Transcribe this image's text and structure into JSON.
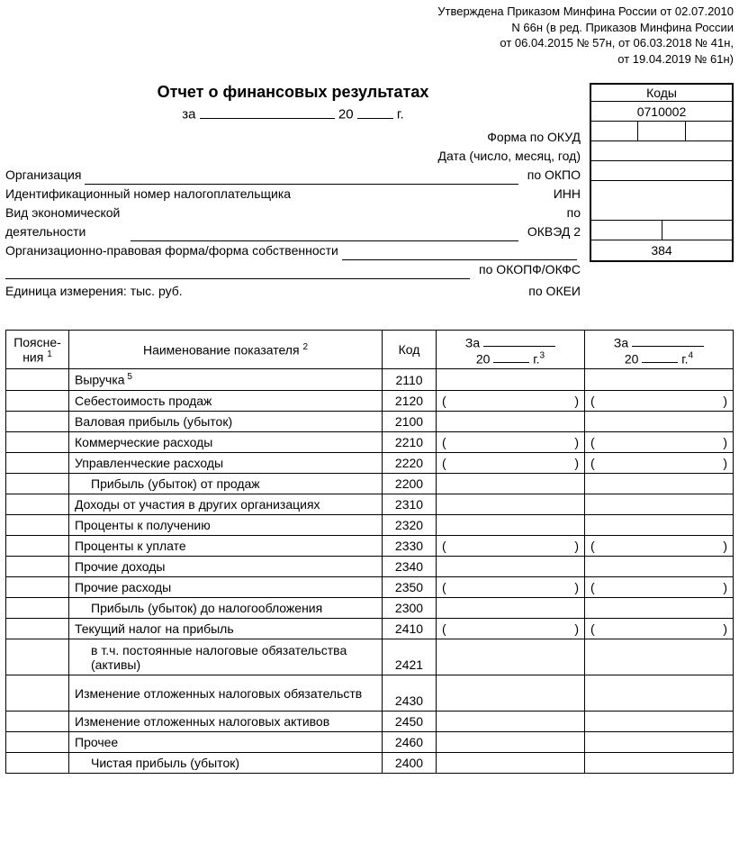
{
  "approval": {
    "line1": "Утверждена Приказом Минфина России от 02.07.2010",
    "line2": "N 66н (в ред. Приказов Минфина России",
    "line3": "от 06.04.2015 № 57н, от 06.03.2018 № 41н,",
    "line4": "от 19.04.2019 № 61н)"
  },
  "title": "Отчет о финансовых результатах",
  "period": {
    "za": "за",
    "twenty": "20",
    "g": "г."
  },
  "meta": {
    "form_okud_label": "Форма по ОКУД",
    "date_label": "Дата (число, месяц, год)",
    "org_label": "Организация",
    "po_okpo": "по ОКПО",
    "inn_label": "Идентификационный номер налогоплательщика",
    "inn_right": "ИНН",
    "activity_label1": "Вид экономической",
    "activity_label2": "деятельности",
    "po": "по",
    "okved": "ОКВЭД 2",
    "opf_label": "Организационно-правовая форма/форма собственности",
    "okopf": "по ОКОПФ/ОКФС",
    "unit_label": "Единица измерения: тыс. руб.",
    "okei": "по ОКЕИ"
  },
  "codes": {
    "title": "Коды",
    "okud": "0710002",
    "okei_value": "384"
  },
  "table": {
    "headers": {
      "poyasn": "Поясне-\nния",
      "poyasn_sup": "1",
      "name": "Наименование показателя",
      "name_sup": "2",
      "kod": "Код",
      "za": "За",
      "twenty": "20",
      "g3": "г.",
      "sup3": "3",
      "sup4": "4"
    },
    "rows": [
      {
        "name": "Выручка",
        "sup": "5",
        "kod": "2110",
        "indent": 0,
        "paren": false
      },
      {
        "name": "Себестоимость продаж",
        "kod": "2120",
        "indent": 0,
        "paren": true
      },
      {
        "name": "Валовая прибыль (убыток)",
        "kod": "2100",
        "indent": 0,
        "paren": false
      },
      {
        "name": "Коммерческие расходы",
        "kod": "2210",
        "indent": 0,
        "paren": true
      },
      {
        "name": "Управленческие расходы",
        "kod": "2220",
        "indent": 0,
        "paren": true
      },
      {
        "name": "Прибыль (убыток) от продаж",
        "kod": "2200",
        "indent": 1,
        "paren": false
      },
      {
        "name": "Доходы от участия в других организациях",
        "kod": "2310",
        "indent": 0,
        "paren": false
      },
      {
        "name": "Проценты к получению",
        "kod": "2320",
        "indent": 0,
        "paren": false
      },
      {
        "name": "Проценты к уплате",
        "kod": "2330",
        "indent": 0,
        "paren": true
      },
      {
        "name": "Прочие доходы",
        "kod": "2340",
        "indent": 0,
        "paren": false
      },
      {
        "name": "Прочие расходы",
        "kod": "2350",
        "indent": 0,
        "paren": true
      },
      {
        "name": "Прибыль (убыток) до налогообложения",
        "kod": "2300",
        "indent": 1,
        "paren": false
      },
      {
        "name": "Текущий налог на прибыль",
        "kod": "2410",
        "indent": 0,
        "paren": true
      },
      {
        "name": "в т.ч. постоянные налоговые обязательства (активы)",
        "kod": "2421",
        "indent": 1,
        "paren": false,
        "tall": true
      },
      {
        "name": "Изменение отложенных налоговых обязательств",
        "kod": "2430",
        "indent": 0,
        "paren": false,
        "tall": true
      },
      {
        "name": "Изменение отложенных налоговых активов",
        "kod": "2450",
        "indent": 0,
        "paren": false
      },
      {
        "name": "Прочее",
        "kod": "2460",
        "indent": 0,
        "paren": false
      },
      {
        "name": "Чистая прибыль (убыток)",
        "kod": "2400",
        "indent": 1,
        "paren": false
      }
    ]
  }
}
